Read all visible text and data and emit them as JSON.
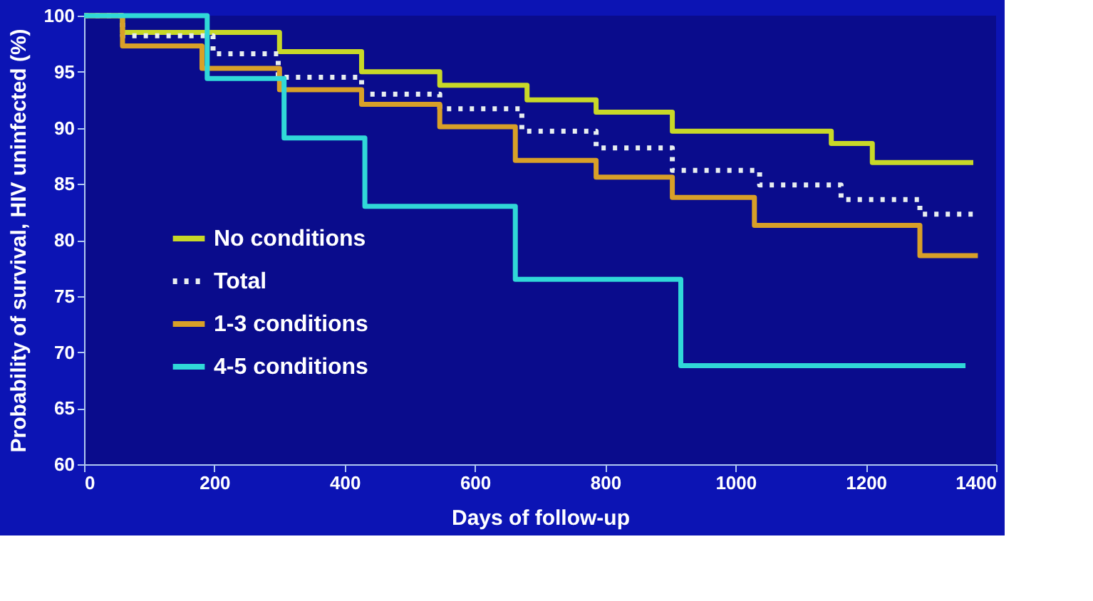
{
  "chart_data": {
    "type": "step",
    "xlabel": "Days of follow-up",
    "ylabel": "Probability of survival, HIV uninfected (%)",
    "xlim": [
      0,
      1400
    ],
    "xticks": [
      0,
      200,
      400,
      600,
      800,
      1000,
      1200,
      1400
    ],
    "ylim": [
      60,
      100
    ],
    "yticks": [
      60,
      65,
      70,
      75,
      80,
      85,
      90,
      95,
      100
    ],
    "legend": "bottom left",
    "grid": false,
    "marker": "none",
    "series": [
      {
        "name": "No conditions",
        "color": "#c8d828",
        "line_style": "solid",
        "x": [
          0,
          59,
          300,
          426,
          546,
          680,
          786,
          903,
          1147,
          1210,
          1365
        ],
        "values": [
          100,
          98.5,
          96.8,
          95.0,
          93.8,
          92.5,
          91.4,
          89.7,
          88.6,
          86.9,
          86.9
        ]
      },
      {
        "name": "Total",
        "color": "#e8eef0",
        "line_style": "dotted",
        "x": [
          0,
          59,
          198,
          298,
          426,
          546,
          672,
          786,
          903,
          1037,
          1162,
          1283,
          1365
        ],
        "values": [
          100,
          98.2,
          96.6,
          94.5,
          93.0,
          91.7,
          89.7,
          88.2,
          86.2,
          84.9,
          83.6,
          82.3,
          82.3
        ]
      },
      {
        "name": "1-3 conditions",
        "color": "#d8a028",
        "line_style": "solid",
        "x": [
          0,
          59,
          181,
          300,
          426,
          546,
          662,
          786,
          903,
          1029,
          1283,
          1372
        ],
        "values": [
          100,
          97.3,
          95.3,
          93.4,
          92.1,
          90.1,
          87.1,
          85.6,
          83.8,
          81.3,
          78.6,
          78.6
        ]
      },
      {
        "name": "4-5 conditions",
        "color": "#30d8d8",
        "line_style": "solid",
        "x": [
          0,
          189,
          307,
          431,
          662,
          916,
          1353
        ],
        "values": [
          100,
          94.4,
          89.1,
          83.0,
          76.5,
          68.8,
          68.8
        ]
      }
    ]
  }
}
